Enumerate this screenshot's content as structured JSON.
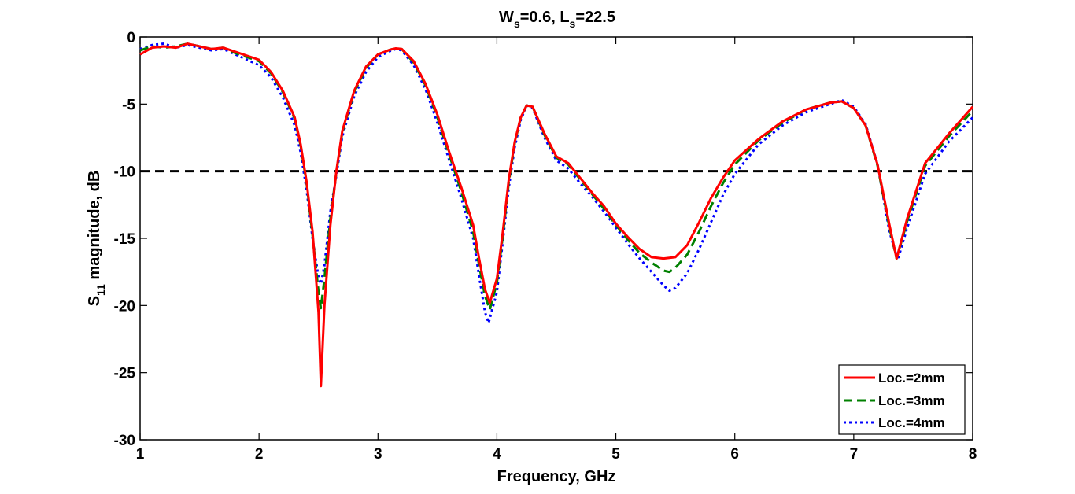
{
  "chart_data": {
    "type": "line",
    "title": {
      "prefix": "W",
      "sub1": "s",
      "middle": "=0.6, L",
      "sub2": "s",
      "suffix": "=22.5"
    },
    "xlabel": "Frequency, GHz",
    "ylabel": {
      "prefix": "S",
      "sub": "11",
      "suffix": " magnitude, dB"
    },
    "xlim": [
      1,
      8
    ],
    "ylim": [
      -30,
      0
    ],
    "xticks": [
      "1",
      "2",
      "3",
      "4",
      "5",
      "6",
      "7",
      "8"
    ],
    "yticks": [
      "0",
      "-5",
      "-10",
      "-15",
      "-20",
      "-25",
      "-30"
    ],
    "grid": false,
    "legend_position": "bottom-right",
    "reference_line": {
      "y": -10,
      "style": "dashed",
      "color": "#000000"
    },
    "series": [
      {
        "name": "Loc.=2mm",
        "color": "#ff0000",
        "style": "solid",
        "points": [
          [
            1.0,
            -1.3
          ],
          [
            1.1,
            -0.8
          ],
          [
            1.2,
            -0.7
          ],
          [
            1.3,
            -0.8
          ],
          [
            1.4,
            -0.5
          ],
          [
            1.5,
            -0.7
          ],
          [
            1.6,
            -0.9
          ],
          [
            1.7,
            -0.8
          ],
          [
            1.8,
            -1.1
          ],
          [
            1.9,
            -1.4
          ],
          [
            2.0,
            -1.7
          ],
          [
            2.1,
            -2.6
          ],
          [
            2.2,
            -4.0
          ],
          [
            2.3,
            -6.0
          ],
          [
            2.35,
            -8.0
          ],
          [
            2.4,
            -10.8
          ],
          [
            2.45,
            -14.5
          ],
          [
            2.5,
            -20.5
          ],
          [
            2.52,
            -26.0
          ],
          [
            2.55,
            -20.0
          ],
          [
            2.6,
            -14.0
          ],
          [
            2.65,
            -10.0
          ],
          [
            2.7,
            -7.0
          ],
          [
            2.8,
            -4.0
          ],
          [
            2.9,
            -2.2
          ],
          [
            3.0,
            -1.3
          ],
          [
            3.1,
            -0.95
          ],
          [
            3.15,
            -0.85
          ],
          [
            3.2,
            -0.9
          ],
          [
            3.3,
            -1.8
          ],
          [
            3.4,
            -3.5
          ],
          [
            3.5,
            -5.8
          ],
          [
            3.6,
            -8.6
          ],
          [
            3.7,
            -11.2
          ],
          [
            3.8,
            -14.0
          ],
          [
            3.85,
            -16.5
          ],
          [
            3.9,
            -18.8
          ],
          [
            3.94,
            -19.8
          ],
          [
            4.0,
            -18.0
          ],
          [
            4.05,
            -14.5
          ],
          [
            4.1,
            -10.6
          ],
          [
            4.15,
            -7.8
          ],
          [
            4.2,
            -6.0
          ],
          [
            4.25,
            -5.1
          ],
          [
            4.3,
            -5.2
          ],
          [
            4.4,
            -7.2
          ],
          [
            4.5,
            -8.9
          ],
          [
            4.6,
            -9.4
          ],
          [
            4.7,
            -10.5
          ],
          [
            4.8,
            -11.6
          ],
          [
            4.9,
            -12.6
          ],
          [
            5.0,
            -13.9
          ],
          [
            5.1,
            -14.9
          ],
          [
            5.2,
            -15.8
          ],
          [
            5.3,
            -16.4
          ],
          [
            5.4,
            -16.5
          ],
          [
            5.5,
            -16.4
          ],
          [
            5.6,
            -15.5
          ],
          [
            5.7,
            -13.8
          ],
          [
            5.8,
            -12.0
          ],
          [
            5.9,
            -10.5
          ],
          [
            6.0,
            -9.2
          ],
          [
            6.2,
            -7.6
          ],
          [
            6.4,
            -6.3
          ],
          [
            6.6,
            -5.4
          ],
          [
            6.8,
            -4.9
          ],
          [
            6.9,
            -4.8
          ],
          [
            7.0,
            -5.3
          ],
          [
            7.1,
            -6.6
          ],
          [
            7.2,
            -9.5
          ],
          [
            7.3,
            -14.0
          ],
          [
            7.36,
            -16.5
          ],
          [
            7.45,
            -13.5
          ],
          [
            7.6,
            -9.4
          ],
          [
            7.8,
            -7.2
          ],
          [
            8.0,
            -5.2
          ]
        ]
      },
      {
        "name": "Loc.=3mm",
        "color": "#008000",
        "style": "dashed",
        "points": [
          [
            1.0,
            -1.0
          ],
          [
            1.1,
            -0.7
          ],
          [
            1.2,
            -0.8
          ],
          [
            1.3,
            -0.7
          ],
          [
            1.4,
            -0.5
          ],
          [
            1.5,
            -0.7
          ],
          [
            1.6,
            -0.9
          ],
          [
            1.7,
            -0.8
          ],
          [
            1.8,
            -1.2
          ],
          [
            1.9,
            -1.5
          ],
          [
            2.0,
            -1.8
          ],
          [
            2.1,
            -2.7
          ],
          [
            2.2,
            -4.1
          ],
          [
            2.3,
            -6.1
          ],
          [
            2.35,
            -8.1
          ],
          [
            2.4,
            -10.9
          ],
          [
            2.45,
            -14.8
          ],
          [
            2.5,
            -19.0
          ],
          [
            2.52,
            -20.2
          ],
          [
            2.55,
            -18.0
          ],
          [
            2.6,
            -13.5
          ],
          [
            2.65,
            -10.1
          ],
          [
            2.7,
            -7.1
          ],
          [
            2.8,
            -4.1
          ],
          [
            2.9,
            -2.3
          ],
          [
            3.0,
            -1.3
          ],
          [
            3.1,
            -0.95
          ],
          [
            3.15,
            -0.85
          ],
          [
            3.2,
            -0.9
          ],
          [
            3.3,
            -1.9
          ],
          [
            3.4,
            -3.6
          ],
          [
            3.5,
            -6.0
          ],
          [
            3.6,
            -8.8
          ],
          [
            3.7,
            -11.5
          ],
          [
            3.8,
            -14.5
          ],
          [
            3.85,
            -17.0
          ],
          [
            3.9,
            -19.3
          ],
          [
            3.94,
            -20.3
          ],
          [
            4.0,
            -18.3
          ],
          [
            4.05,
            -14.8
          ],
          [
            4.1,
            -10.8
          ],
          [
            4.15,
            -7.9
          ],
          [
            4.2,
            -6.0
          ],
          [
            4.25,
            -5.1
          ],
          [
            4.3,
            -5.2
          ],
          [
            4.4,
            -7.3
          ],
          [
            4.5,
            -9.0
          ],
          [
            4.6,
            -9.5
          ],
          [
            4.7,
            -10.6
          ],
          [
            4.8,
            -11.7
          ],
          [
            4.9,
            -12.8
          ],
          [
            5.0,
            -14.0
          ],
          [
            5.1,
            -15.1
          ],
          [
            5.2,
            -16.1
          ],
          [
            5.3,
            -16.8
          ],
          [
            5.4,
            -17.4
          ],
          [
            5.45,
            -17.5
          ],
          [
            5.5,
            -17.2
          ],
          [
            5.6,
            -16.2
          ],
          [
            5.7,
            -14.5
          ],
          [
            5.8,
            -12.6
          ],
          [
            5.9,
            -10.9
          ],
          [
            6.0,
            -9.5
          ],
          [
            6.2,
            -7.7
          ],
          [
            6.4,
            -6.4
          ],
          [
            6.6,
            -5.4
          ],
          [
            6.8,
            -4.9
          ],
          [
            6.9,
            -4.8
          ],
          [
            7.0,
            -5.3
          ],
          [
            7.1,
            -6.6
          ],
          [
            7.2,
            -9.6
          ],
          [
            7.3,
            -14.2
          ],
          [
            7.36,
            -16.5
          ],
          [
            7.45,
            -13.7
          ],
          [
            7.6,
            -9.6
          ],
          [
            7.8,
            -7.4
          ],
          [
            8.0,
            -5.5
          ]
        ]
      },
      {
        "name": "Loc.=4mm",
        "color": "#0000ff",
        "style": "dotted",
        "points": [
          [
            1.0,
            -0.9
          ],
          [
            1.1,
            -0.6
          ],
          [
            1.2,
            -0.5
          ],
          [
            1.3,
            -0.8
          ],
          [
            1.4,
            -0.6
          ],
          [
            1.5,
            -0.8
          ],
          [
            1.6,
            -1.0
          ],
          [
            1.7,
            -0.9
          ],
          [
            1.8,
            -1.3
          ],
          [
            1.9,
            -1.7
          ],
          [
            2.0,
            -2.1
          ],
          [
            2.1,
            -3.0
          ],
          [
            2.2,
            -4.5
          ],
          [
            2.3,
            -6.6
          ],
          [
            2.35,
            -8.6
          ],
          [
            2.4,
            -11.4
          ],
          [
            2.45,
            -15.0
          ],
          [
            2.5,
            -17.9
          ],
          [
            2.52,
            -18.4
          ],
          [
            2.55,
            -17.0
          ],
          [
            2.6,
            -13.0
          ],
          [
            2.65,
            -10.3
          ],
          [
            2.7,
            -7.4
          ],
          [
            2.8,
            -4.4
          ],
          [
            2.9,
            -2.6
          ],
          [
            3.0,
            -1.5
          ],
          [
            3.1,
            -1.05
          ],
          [
            3.15,
            -0.9
          ],
          [
            3.2,
            -1.0
          ],
          [
            3.3,
            -2.1
          ],
          [
            3.4,
            -3.9
          ],
          [
            3.5,
            -6.4
          ],
          [
            3.6,
            -9.2
          ],
          [
            3.7,
            -12.0
          ],
          [
            3.8,
            -15.0
          ],
          [
            3.85,
            -17.8
          ],
          [
            3.9,
            -20.5
          ],
          [
            3.93,
            -21.3
          ],
          [
            4.0,
            -19.0
          ],
          [
            4.05,
            -15.2
          ],
          [
            4.1,
            -11.2
          ],
          [
            4.15,
            -8.2
          ],
          [
            4.2,
            -6.2
          ],
          [
            4.25,
            -5.1
          ],
          [
            4.3,
            -5.3
          ],
          [
            4.4,
            -7.5
          ],
          [
            4.5,
            -9.2
          ],
          [
            4.6,
            -9.8
          ],
          [
            4.7,
            -10.9
          ],
          [
            4.8,
            -11.9
          ],
          [
            4.9,
            -13.0
          ],
          [
            5.0,
            -14.2
          ],
          [
            5.1,
            -15.4
          ],
          [
            5.2,
            -16.5
          ],
          [
            5.3,
            -17.5
          ],
          [
            5.4,
            -18.5
          ],
          [
            5.45,
            -18.9
          ],
          [
            5.5,
            -18.7
          ],
          [
            5.6,
            -17.6
          ],
          [
            5.7,
            -15.8
          ],
          [
            5.8,
            -13.8
          ],
          [
            5.9,
            -11.8
          ],
          [
            6.0,
            -10.2
          ],
          [
            6.2,
            -8.0
          ],
          [
            6.4,
            -6.6
          ],
          [
            6.6,
            -5.6
          ],
          [
            6.8,
            -5.0
          ],
          [
            6.9,
            -4.7
          ],
          [
            7.0,
            -5.2
          ],
          [
            7.1,
            -6.5
          ],
          [
            7.2,
            -9.5
          ],
          [
            7.3,
            -14.5
          ],
          [
            7.37,
            -16.6
          ],
          [
            7.45,
            -14.2
          ],
          [
            7.6,
            -10.2
          ],
          [
            7.8,
            -7.8
          ],
          [
            8.0,
            -6.0
          ]
        ]
      }
    ]
  }
}
